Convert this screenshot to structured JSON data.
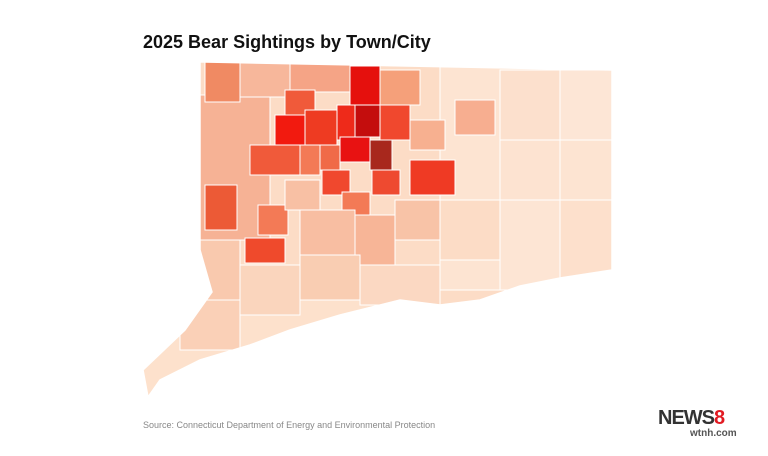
{
  "title": "2025 Bear Sightings by Town/City",
  "source": "Source: Connecticut Department of Energy and Environmental Protection",
  "logo": {
    "name": "NEWS",
    "number": "8",
    "site": "wtnh.com"
  }
}
